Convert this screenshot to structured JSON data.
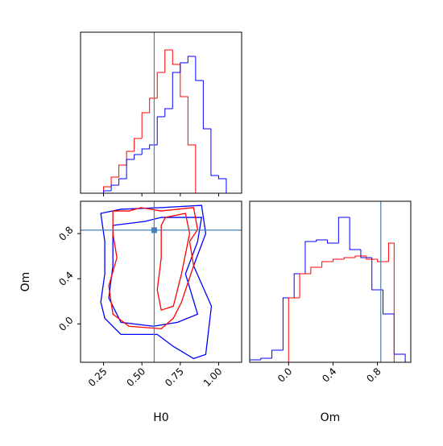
{
  "chart_data": [
    {
      "type": "histogram",
      "xlim": [
        0.1,
        1.15
      ],
      "ylim": [
        0,
        200
      ],
      "xticks": [
        0.25,
        0.5,
        0.75,
        1.0
      ],
      "vlines": [
        0.58
      ],
      "series": [
        {
          "color": "#ff0000",
          "bins": [
            0.25,
            0.3,
            0.35,
            0.4,
            0.45,
            0.5,
            0.55,
            0.6,
            0.65,
            0.7,
            0.75,
            0.8,
            0.85
          ],
          "values": [
            8,
            20,
            35,
            52,
            68,
            100,
            118,
            150,
            178,
            160,
            120,
            60
          ]
        },
        {
          "color": "#0000ff",
          "bins": [
            0.25,
            0.3,
            0.35,
            0.4,
            0.45,
            0.5,
            0.55,
            0.6,
            0.65,
            0.7,
            0.75,
            0.8,
            0.85,
            0.9,
            0.95,
            1.0,
            1.05
          ],
          "values": [
            3,
            10,
            18,
            42,
            48,
            55,
            60,
            95,
            105,
            150,
            162,
            170,
            140,
            80,
            22,
            18
          ]
        }
      ]
    },
    {
      "type": "contour",
      "xlabel": "H0",
      "ylabel": "Om",
      "xlim": [
        0.1,
        1.15
      ],
      "ylim": [
        -0.34,
        1.086
      ],
      "xticks": [
        {
          "value": 0.25,
          "label": "0.25"
        },
        {
          "value": 0.5,
          "label": "0.50"
        },
        {
          "value": 0.75,
          "label": "0.75"
        },
        {
          "value": 1.0,
          "label": "1.00"
        }
      ],
      "yticks": [
        {
          "value": 0.0,
          "label": "0.0"
        },
        0.4,
        0.8
      ],
      "truth": [
        0.58,
        0.83
      ],
      "series": [
        {
          "color": "#0000ff",
          "x": [
            0.232,
            0.363,
            0.626,
            0.889,
            0.916,
            0.837,
            0.953,
            0.916,
            0.837,
            0.705,
            0.6,
            0.363,
            0.258,
            0.232,
            0.258,
            0.258
          ],
          "y": [
            0.979,
            1.015,
            1.03,
            1.05,
            0.8,
            0.515,
            0.157,
            -0.271,
            -0.307,
            -0.2,
            -0.093,
            -0.093,
            0.05,
            0.193,
            0.443,
            0.729
          ]
        },
        {
          "color": "#0000ff",
          "x": [
            0.311,
            0.521,
            0.626,
            0.889,
            0.863,
            0.784,
            0.863,
            0.732,
            0.574,
            0.363,
            0.284,
            0.311
          ],
          "y": [
            0.872,
            0.908,
            0.943,
            0.943,
            0.729,
            0.443,
            0.086,
            0.014,
            -0.021,
            0.014,
            0.229,
            0.515
          ]
        },
        {
          "color": "#ff0000",
          "x": [
            0.311,
            0.416,
            0.495,
            0.626,
            0.837,
            0.863,
            0.811,
            0.837,
            0.758,
            0.705,
            0.626,
            0.416,
            0.311,
            0.284,
            0.337,
            0.311
          ],
          "y": [
            1.0,
            1.0,
            1.03,
            1.0,
            1.03,
            0.836,
            0.729,
            0.515,
            0.193,
            0.05,
            -0.043,
            -0.021,
            0.086,
            0.336,
            0.586,
            0.8
          ]
        },
        {
          "color": "#ff0000",
          "x": [
            0.653,
            0.784,
            0.811,
            0.758,
            0.705,
            0.626,
            0.6,
            0.626,
            0.626
          ],
          "y": [
            0.943,
            0.979,
            0.8,
            0.443,
            0.157,
            0.122,
            0.3,
            0.586,
            0.872
          ]
        }
      ]
    },
    {
      "type": "histogram",
      "xlabel": "Om",
      "xlim": [
        -0.35,
        1.1
      ],
      "ylim": [
        0,
        200
      ],
      "xticks": [
        {
          "value": 0.0,
          "label": "0.0"
        },
        0.4,
        0.8
      ],
      "vlines": [
        0.83
      ],
      "series": [
        {
          "color": "#0000ff",
          "bins": [
            -0.35,
            -0.25,
            -0.15,
            -0.05,
            0.05,
            0.15,
            0.25,
            0.35,
            0.45,
            0.55,
            0.65,
            0.75,
            0.85,
            0.95,
            1.05
          ],
          "values": [
            3,
            5,
            15,
            80,
            110,
            150,
            152,
            148,
            180,
            140,
            130,
            90,
            60,
            10
          ]
        },
        {
          "color": "#ff0000",
          "bins": [
            0.0,
            0.1,
            0.2,
            0.3,
            0.4,
            0.5,
            0.6,
            0.7,
            0.8,
            0.9,
            0.95
          ],
          "values": [
            80,
            110,
            118,
            125,
            128,
            130,
            132,
            128,
            125,
            148
          ]
        }
      ]
    }
  ]
}
